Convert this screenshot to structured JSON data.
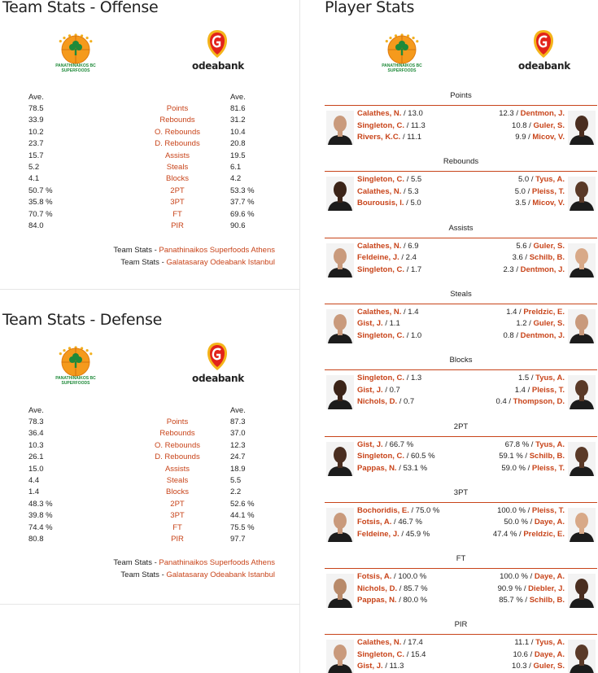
{
  "offense": {
    "title": "Team Stats - Offense",
    "home_header": "Ave.",
    "away_header": "Ave.",
    "rows": [
      {
        "home": "78.5",
        "label": "Points",
        "away": "81.6"
      },
      {
        "home": "33.9",
        "label": "Rebounds",
        "away": "31.2"
      },
      {
        "home": "10.2",
        "label": "O. Rebounds",
        "away": "10.4"
      },
      {
        "home": "23.7",
        "label": "D. Rebounds",
        "away": "20.8"
      },
      {
        "home": "15.7",
        "label": "Assists",
        "away": "19.5"
      },
      {
        "home": "5.2",
        "label": "Steals",
        "away": "6.1"
      },
      {
        "home": "4.1",
        "label": "Blocks",
        "away": "4.2"
      },
      {
        "home": "50.7 %",
        "label": "2PT",
        "away": "53.3 %"
      },
      {
        "home": "35.8 %",
        "label": "3PT",
        "away": "37.7 %"
      },
      {
        "home": "70.7 %",
        "label": "FT",
        "away": "69.6 %"
      },
      {
        "home": "84.0",
        "label": "PIR",
        "away": "90.6"
      }
    ],
    "link_prefix_1": "Team Stats - ",
    "link_1": "Panathinaikos Superfoods Athens",
    "link_prefix_2": "Team Stats - ",
    "link_2": "Galatasaray Odeabank Istanbul"
  },
  "defense": {
    "title": "Team Stats - Defense",
    "home_header": "Ave.",
    "away_header": "Ave.",
    "rows": [
      {
        "home": "78.3",
        "label": "Points",
        "away": "87.3"
      },
      {
        "home": "36.4",
        "label": "Rebounds",
        "away": "37.0"
      },
      {
        "home": "10.3",
        "label": "O. Rebounds",
        "away": "12.3"
      },
      {
        "home": "26.1",
        "label": "D. Rebounds",
        "away": "24.7"
      },
      {
        "home": "15.0",
        "label": "Assists",
        "away": "18.9"
      },
      {
        "home": "4.4",
        "label": "Steals",
        "away": "5.5"
      },
      {
        "home": "1.4",
        "label": "Blocks",
        "away": "2.2"
      },
      {
        "home": "48.3 %",
        "label": "2PT",
        "away": "52.6 %"
      },
      {
        "home": "39.8 %",
        "label": "3PT",
        "away": "44.1 %"
      },
      {
        "home": "74.4 %",
        "label": "FT",
        "away": "75.5 %"
      },
      {
        "home": "80.8",
        "label": "PIR",
        "away": "97.7"
      }
    ],
    "link_prefix_1": "Team Stats - ",
    "link_1": "Panathinaikos Superfoods Athens",
    "link_prefix_2": "Team Stats - ",
    "link_2": "Galatasaray Odeabank Istanbul"
  },
  "logos": {
    "home_line1": "PANATHINAIKOS BC",
    "home_line2": "SUPERFOODS",
    "away_text": "odeabank",
    "home_color": "#1f8a3a",
    "away_color": "#e2231a",
    "accent": "#c8441a"
  },
  "player_stats": {
    "title": "Player Stats",
    "categories": [
      {
        "title": "Points",
        "left": [
          {
            "name": "Calathes, N.",
            "val": " / 13.0"
          },
          {
            "name": "Singleton, C.",
            "val": " / 11.3"
          },
          {
            "name": "Rivers, K.C.",
            "val": " / 11.1"
          }
        ],
        "right": [
          {
            "val": "12.3 / ",
            "name": "Dentmon, J."
          },
          {
            "val": "10.8 / ",
            "name": "Guler, S."
          },
          {
            "val": "9.9 / ",
            "name": "Micov, V."
          }
        ],
        "left_skin": "#c99a7c",
        "right_skin": "#4a2e20"
      },
      {
        "title": "Rebounds",
        "left": [
          {
            "name": "Singleton, C.",
            "val": " / 5.5"
          },
          {
            "name": "Calathes, N.",
            "val": " / 5.3"
          },
          {
            "name": "Bourousis, I.",
            "val": " / 5.0"
          }
        ],
        "right": [
          {
            "val": "5.0 / ",
            "name": "Tyus, A."
          },
          {
            "val": "5.0 / ",
            "name": "Pleiss, T."
          },
          {
            "val": "3.5 / ",
            "name": "Micov, V."
          }
        ],
        "left_skin": "#3b2418",
        "right_skin": "#5a3a28"
      },
      {
        "title": "Assists",
        "left": [
          {
            "name": "Calathes, N.",
            "val": " / 6.9"
          },
          {
            "name": "Feldeine, J.",
            "val": " / 2.4"
          },
          {
            "name": "Singleton, C.",
            "val": " / 1.7"
          }
        ],
        "right": [
          {
            "val": "5.6 / ",
            "name": "Guler, S."
          },
          {
            "val": "3.6 / ",
            "name": "Schilb, B."
          },
          {
            "val": "2.3 / ",
            "name": "Dentmon, J."
          }
        ],
        "left_skin": "#c99a7c",
        "right_skin": "#d8a988"
      },
      {
        "title": "Steals",
        "left": [
          {
            "name": "Calathes, N.",
            "val": " / 1.4"
          },
          {
            "name": "Gist, J.",
            "val": " / 1.1"
          },
          {
            "name": "Singleton, C.",
            "val": " / 1.0"
          }
        ],
        "right": [
          {
            "val": "1.4 / ",
            "name": "Preldzic, E."
          },
          {
            "val": "1.2 / ",
            "name": "Guler, S."
          },
          {
            "val": "0.8 / ",
            "name": "Dentmon, J."
          }
        ],
        "left_skin": "#c99a7c",
        "right_skin": "#c99a7c"
      },
      {
        "title": "Blocks",
        "left": [
          {
            "name": "Singleton, C.",
            "val": " / 1.3"
          },
          {
            "name": "Gist, J.",
            "val": " / 0.7"
          },
          {
            "name": "Nichols, D.",
            "val": " / 0.7"
          }
        ],
        "right": [
          {
            "val": "1.5 / ",
            "name": "Tyus, A."
          },
          {
            "val": "1.4 / ",
            "name": "Pleiss, T."
          },
          {
            "val": "0.4 / ",
            "name": "Thompson, D."
          }
        ],
        "left_skin": "#3b2418",
        "right_skin": "#5a3a28"
      },
      {
        "title": "2PT",
        "left": [
          {
            "name": "Gist, J.",
            "val": " / 66.7 %"
          },
          {
            "name": "Singleton, C.",
            "val": " / 60.5 %"
          },
          {
            "name": "Pappas, N.",
            "val": " / 53.1 %"
          }
        ],
        "right": [
          {
            "val": "67.8 % / ",
            "name": "Tyus, A."
          },
          {
            "val": "59.1 % / ",
            "name": "Schilb, B."
          },
          {
            "val": "59.0 % / ",
            "name": "Pleiss, T."
          }
        ],
        "left_skin": "#4a2e20",
        "right_skin": "#5a3a28"
      },
      {
        "title": "3PT",
        "left": [
          {
            "name": "Bochoridis, E.",
            "val": " / 75.0 %"
          },
          {
            "name": "Fotsis, A.",
            "val": " / 46.7 %"
          },
          {
            "name": "Feldeine, J.",
            "val": " / 45.9 %"
          }
        ],
        "right": [
          {
            "val": "100.0 % / ",
            "name": "Pleiss, T."
          },
          {
            "val": "50.0 % / ",
            "name": "Daye, A."
          },
          {
            "val": "47.4 % / ",
            "name": "Preldzic, E."
          }
        ],
        "left_skin": "#c99a7c",
        "right_skin": "#d8a988"
      },
      {
        "title": "FT",
        "left": [
          {
            "name": "Fotsis, A.",
            "val": " / 100.0 %"
          },
          {
            "name": "Nichols, D.",
            "val": " / 85.7 %"
          },
          {
            "name": "Pappas, N.",
            "val": " / 80.0 %"
          }
        ],
        "right": [
          {
            "val": "100.0 % / ",
            "name": "Daye, A."
          },
          {
            "val": "90.9 % / ",
            "name": "Diebler, J."
          },
          {
            "val": "85.7 % / ",
            "name": "Schilb, B."
          }
        ],
        "left_skin": "#b88a6a",
        "right_skin": "#4a2e20"
      },
      {
        "title": "PIR",
        "left": [
          {
            "name": "Calathes, N.",
            "val": " / 17.4"
          },
          {
            "name": "Singleton, C.",
            "val": " / 15.4"
          },
          {
            "name": "Gist, J.",
            "val": " / 11.3"
          }
        ],
        "right": [
          {
            "val": "11.1 / ",
            "name": "Tyus, A."
          },
          {
            "val": "10.6 / ",
            "name": "Daye, A."
          },
          {
            "val": "10.3 / ",
            "name": "Guler, S."
          }
        ],
        "left_skin": "#c99a7c",
        "right_skin": "#5a3a28"
      }
    ]
  }
}
